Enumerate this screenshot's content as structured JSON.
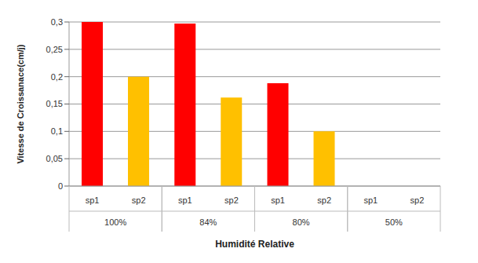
{
  "chart_data": {
    "type": "bar",
    "categories": [
      "100%",
      "84%",
      "80%",
      "50%"
    ],
    "series": [
      {
        "name": "sp1",
        "color": "#ff0000",
        "values": [
          0.3,
          0.297,
          0.188,
          0
        ]
      },
      {
        "name": "sp2",
        "color": "#ffc000",
        "values": [
          0.2,
          0.162,
          0.1,
          0
        ]
      }
    ],
    "x_label": "Humidité Relative",
    "y_label": "Vitesse de Croissanace(cm/j)",
    "ylim": [
      0,
      0.3
    ],
    "yticks": [
      0,
      {
        "value": 0.05,
        "label": "0,05"
      },
      {
        "value": 0.1,
        "label": "0,1"
      },
      {
        "value": 0.15,
        "label": "0,15"
      },
      {
        "value": 0.2,
        "label": "0,2"
      },
      {
        "value": 0.25,
        "label": "0,25"
      },
      {
        "value": 0.3,
        "label": "0,3"
      }
    ],
    "grid": true
  }
}
